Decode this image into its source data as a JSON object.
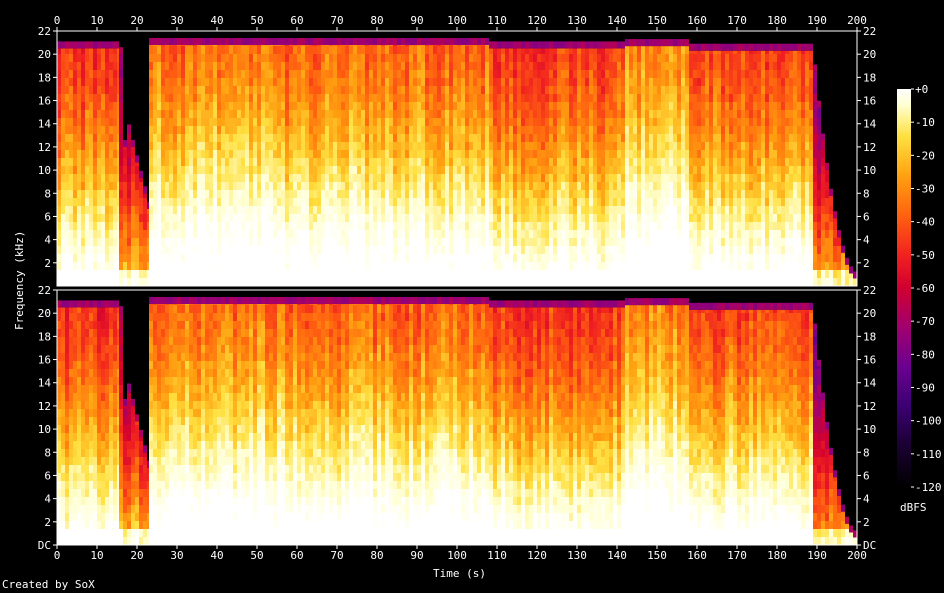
{
  "credit": "Created by SoX",
  "chart_data": {
    "type": "heatmap",
    "title": "",
    "xlabel": "Time (s)",
    "ylabel": "Frequency (kHz)",
    "xlim": [
      0,
      200
    ],
    "ylim_khz": [
      0,
      22
    ],
    "x_ticks": [
      0,
      10,
      20,
      30,
      40,
      50,
      60,
      70,
      80,
      90,
      100,
      110,
      120,
      130,
      140,
      150,
      160,
      170,
      180,
      190,
      200
    ],
    "y_ticks_top": [
      "22",
      "20",
      "18",
      "16",
      "14",
      "12",
      "10",
      "8",
      "6",
      "4",
      "2"
    ],
    "y_ticks_bottom": [
      "22",
      "20",
      "18",
      "16",
      "14",
      "12",
      "10",
      "8",
      "6",
      "4",
      "2",
      "DC"
    ],
    "channels": 2,
    "colorbar": {
      "unit": "dBFS",
      "range": [
        -120,
        0
      ],
      "ticks": [
        "+0",
        "-10",
        "-20",
        "-30",
        "-40",
        "-50",
        "-60",
        "-70",
        "-80",
        "-90",
        "-100",
        "-110",
        "-120"
      ]
    },
    "colors": {
      "background": "#000000",
      "scale": [
        "#000000",
        "#1a0030",
        "#3a0070",
        "#6a0090",
        "#a00070",
        "#d00030",
        "#f02020",
        "#ff6010",
        "#ffa010",
        "#ffe040",
        "#ffffd0",
        "#ffffff"
      ]
    },
    "segments": [
      {
        "start": 0,
        "end": 15.5,
        "cutoff_khz": 20.5,
        "intensity": 0.72
      },
      {
        "start": 15.5,
        "end": 23,
        "cutoff_khz": 8,
        "intensity": 0.5
      },
      {
        "start": 23,
        "end": 57,
        "cutoff_khz": 20.8,
        "intensity": 0.82
      },
      {
        "start": 57,
        "end": 108,
        "cutoff_khz": 20.8,
        "intensity": 0.8
      },
      {
        "start": 108,
        "end": 142,
        "cutoff_khz": 20.5,
        "intensity": 0.74
      },
      {
        "start": 142,
        "end": 158,
        "cutoff_khz": 20.7,
        "intensity": 0.85
      },
      {
        "start": 158,
        "end": 189,
        "cutoff_khz": 20.3,
        "intensity": 0.75
      },
      {
        "start": 189,
        "end": 200,
        "cutoff_khz": 3,
        "intensity": 0.45
      }
    ]
  }
}
